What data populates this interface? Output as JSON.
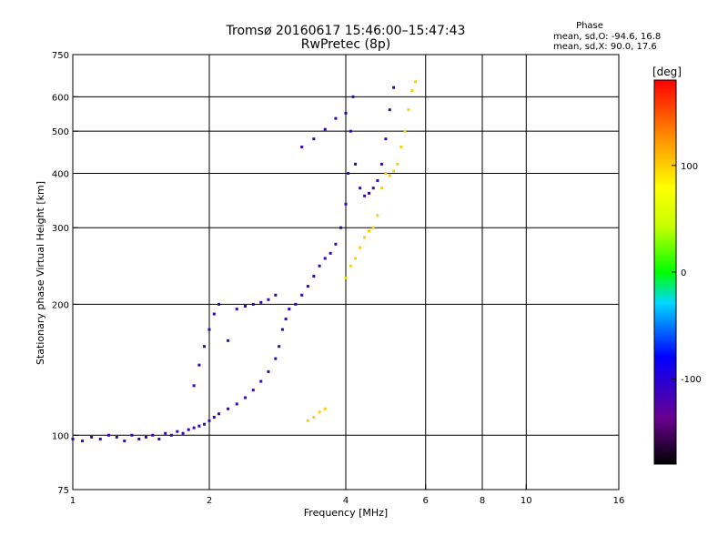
{
  "chart_data": {
    "type": "scatter",
    "title": "Tromsø 20160617 15:46:00–15:47:43",
    "subtitle": "RwPretec (8p)",
    "xlabel": "Frequency [MHz]",
    "ylabel": "Stationary phase Virtual Height [km]",
    "x_scale": "log",
    "y_scale": "log",
    "xlim": [
      1,
      16
    ],
    "ylim": [
      75,
      750
    ],
    "x_ticks": [
      1,
      2,
      4,
      6,
      8,
      10,
      16
    ],
    "y_ticks": [
      75,
      100,
      200,
      300,
      400,
      500,
      600,
      750
    ],
    "x_gridlines": [
      2,
      4,
      6,
      8,
      10
    ],
    "y_gridlines": [
      100,
      200,
      300,
      400,
      500,
      600
    ],
    "grid": true,
    "phase_stats": {
      "title": "Phase",
      "line_o": "mean, sd,O: -94.6, 16.8",
      "line_x": "mean, sd,X:  90.0, 17.6"
    },
    "colorbar": {
      "unit": "[deg]",
      "ticks": [
        100,
        0,
        -100
      ],
      "range": [
        -180,
        180
      ]
    },
    "series": [
      {
        "name": "O",
        "phase_deg": -110,
        "points": [
          [
            1.0,
            98
          ],
          [
            1.05,
            97
          ],
          [
            1.1,
            99
          ],
          [
            1.15,
            98
          ],
          [
            1.2,
            100
          ],
          [
            1.25,
            99
          ],
          [
            1.3,
            97
          ],
          [
            1.35,
            100
          ],
          [
            1.4,
            98
          ],
          [
            1.45,
            99
          ],
          [
            1.5,
            100
          ],
          [
            1.55,
            98
          ],
          [
            1.6,
            101
          ],
          [
            1.65,
            100
          ],
          [
            1.7,
            102
          ],
          [
            1.75,
            101
          ],
          [
            1.8,
            103
          ],
          [
            1.85,
            104
          ],
          [
            1.9,
            105
          ],
          [
            1.95,
            106
          ],
          [
            2.0,
            108
          ],
          [
            2.05,
            110
          ],
          [
            2.1,
            112
          ],
          [
            2.2,
            115
          ],
          [
            2.3,
            118
          ],
          [
            2.4,
            122
          ],
          [
            2.5,
            127
          ],
          [
            2.6,
            133
          ],
          [
            2.7,
            140
          ],
          [
            2.8,
            150
          ],
          [
            2.85,
            160
          ],
          [
            2.9,
            175
          ],
          [
            2.95,
            185
          ],
          [
            3.0,
            195
          ],
          [
            3.1,
            200
          ],
          [
            3.2,
            210
          ],
          [
            3.3,
            220
          ],
          [
            3.4,
            232
          ],
          [
            3.5,
            245
          ],
          [
            3.6,
            255
          ],
          [
            3.7,
            262
          ],
          [
            3.8,
            275
          ],
          [
            3.9,
            300
          ],
          [
            4.0,
            340
          ],
          [
            4.05,
            400
          ],
          [
            4.1,
            500
          ],
          [
            4.15,
            600
          ],
          [
            4.2,
            420
          ],
          [
            4.3,
            370
          ],
          [
            4.4,
            355
          ],
          [
            4.5,
            360
          ],
          [
            4.6,
            370
          ],
          [
            4.7,
            385
          ],
          [
            4.8,
            420
          ],
          [
            4.9,
            480
          ],
          [
            5.0,
            560
          ],
          [
            5.1,
            630
          ],
          [
            3.2,
            460
          ],
          [
            3.4,
            480
          ],
          [
            3.6,
            505
          ],
          [
            3.8,
            535
          ],
          [
            4.0,
            550
          ],
          [
            1.85,
            130
          ],
          [
            1.9,
            145
          ],
          [
            1.95,
            160
          ],
          [
            2.0,
            175
          ],
          [
            2.05,
            190
          ],
          [
            2.1,
            200
          ],
          [
            2.2,
            165
          ],
          [
            2.3,
            195
          ],
          [
            2.4,
            198
          ],
          [
            2.5,
            200
          ],
          [
            2.6,
            202
          ],
          [
            2.7,
            205
          ],
          [
            2.8,
            210
          ]
        ]
      },
      {
        "name": "X",
        "phase_deg": 100,
        "points": [
          [
            3.3,
            108
          ],
          [
            3.4,
            110
          ],
          [
            3.5,
            113
          ],
          [
            3.6,
            115
          ],
          [
            4.0,
            230
          ],
          [
            4.1,
            245
          ],
          [
            4.2,
            255
          ],
          [
            4.3,
            270
          ],
          [
            4.4,
            285
          ],
          [
            4.5,
            295
          ],
          [
            4.6,
            300
          ],
          [
            4.7,
            320
          ],
          [
            4.8,
            370
          ],
          [
            4.9,
            400
          ],
          [
            5.0,
            395
          ],
          [
            5.1,
            405
          ],
          [
            5.2,
            420
          ],
          [
            5.3,
            460
          ],
          [
            5.4,
            500
          ],
          [
            5.5,
            560
          ],
          [
            5.6,
            620
          ],
          [
            5.7,
            650
          ]
        ]
      }
    ]
  }
}
